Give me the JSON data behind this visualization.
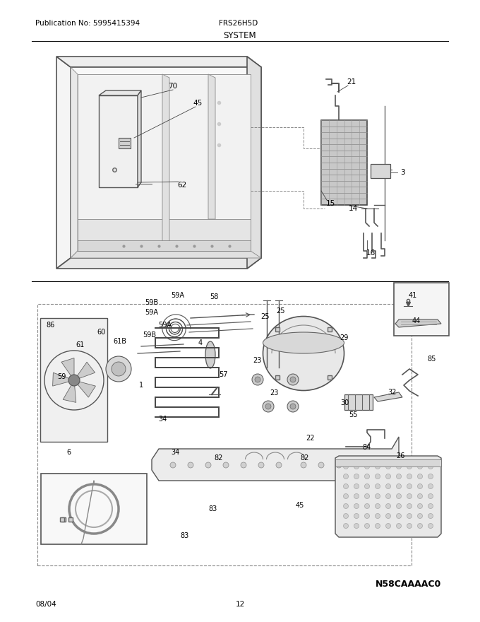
{
  "pub_no": "Publication No: 5995415394",
  "model": "FRS26H5D",
  "section": "SYSTEM",
  "date": "08/04",
  "page": "12",
  "diagram_id": "N58CAAAAC0",
  "bg_color": "#ffffff",
  "line_color": "#000000",
  "text_color": "#000000"
}
